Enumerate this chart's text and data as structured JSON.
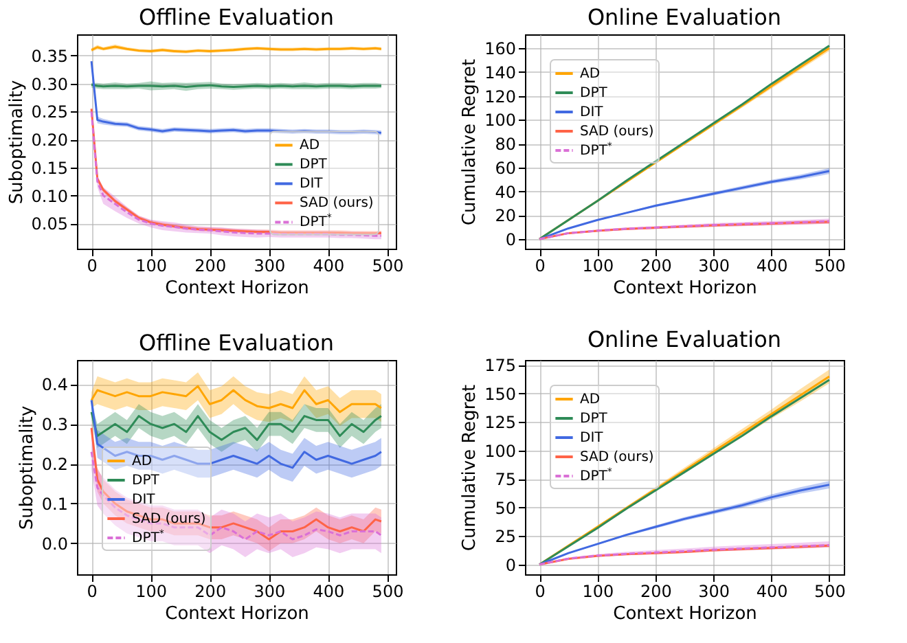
{
  "chart_data": [
    {
      "type": "line",
      "title": "Offline Evaluation",
      "xlabel": "Context Horizon",
      "ylabel": "Suboptimality",
      "xlim": [
        -24.5,
        514.5
      ],
      "xticks": [
        0,
        100,
        200,
        300,
        400,
        500
      ],
      "ylim": [
        0.005,
        0.388
      ],
      "yticks": [
        0.05,
        {
          "value": 0.1,
          "label": "0.10"
        },
        0.15,
        {
          "value": 0.2,
          "label": "0.20"
        },
        0.25,
        {
          "value": 0.3,
          "label": "0.30"
        },
        0.35
      ],
      "grid": true,
      "legend": "right",
      "x": [
        0,
        10,
        20,
        40,
        60,
        80,
        100,
        120,
        140,
        160,
        180,
        200,
        220,
        240,
        260,
        280,
        300,
        320,
        340,
        360,
        380,
        400,
        420,
        440,
        460,
        480,
        490
      ],
      "series": [
        {
          "name": "AD",
          "color": "#ffa500",
          "values": [
            0.36,
            0.365,
            0.362,
            0.366,
            0.362,
            0.359,
            0.358,
            0.36,
            0.358,
            0.357,
            0.359,
            0.358,
            0.359,
            0.36,
            0.362,
            0.363,
            0.362,
            0.361,
            0.361,
            0.362,
            0.361,
            0.362,
            0.362,
            0.363,
            0.362,
            0.363,
            0.362
          ],
          "lower": [
            0.357,
            0.361,
            0.359,
            0.362,
            0.359,
            0.356,
            0.355,
            0.357,
            0.355,
            0.354,
            0.356,
            0.355,
            0.356,
            0.357,
            0.359,
            0.36,
            0.359,
            0.358,
            0.358,
            0.359,
            0.358,
            0.359,
            0.359,
            0.36,
            0.359,
            0.36,
            0.359
          ],
          "upper": [
            0.363,
            0.369,
            0.365,
            0.37,
            0.365,
            0.362,
            0.361,
            0.363,
            0.361,
            0.36,
            0.362,
            0.361,
            0.362,
            0.363,
            0.365,
            0.366,
            0.365,
            0.364,
            0.364,
            0.365,
            0.364,
            0.365,
            0.365,
            0.366,
            0.365,
            0.366,
            0.365
          ]
        },
        {
          "name": "DPT",
          "color": "#2e8b57",
          "values": [
            0.298,
            0.296,
            0.295,
            0.296,
            0.295,
            0.296,
            0.296,
            0.295,
            0.296,
            0.294,
            0.296,
            0.297,
            0.295,
            0.294,
            0.295,
            0.296,
            0.295,
            0.296,
            0.295,
            0.296,
            0.295,
            0.296,
            0.296,
            0.295,
            0.296,
            0.296,
            0.296
          ],
          "lower": [
            0.293,
            0.291,
            0.29,
            0.29,
            0.29,
            0.291,
            0.288,
            0.289,
            0.29,
            0.287,
            0.29,
            0.291,
            0.29,
            0.289,
            0.29,
            0.291,
            0.29,
            0.291,
            0.29,
            0.29,
            0.29,
            0.291,
            0.291,
            0.29,
            0.291,
            0.291,
            0.292
          ],
          "upper": [
            0.301,
            0.301,
            0.3,
            0.302,
            0.3,
            0.301,
            0.304,
            0.301,
            0.302,
            0.301,
            0.302,
            0.303,
            0.3,
            0.299,
            0.3,
            0.301,
            0.3,
            0.301,
            0.3,
            0.302,
            0.3,
            0.301,
            0.301,
            0.3,
            0.301,
            0.301,
            0.3
          ]
        },
        {
          "name": "DIT",
          "color": "#4169e1",
          "values": [
            0.34,
            0.235,
            0.232,
            0.228,
            0.227,
            0.22,
            0.218,
            0.215,
            0.218,
            0.217,
            0.216,
            0.215,
            0.216,
            0.217,
            0.215,
            0.216,
            0.216,
            0.215,
            0.214,
            0.215,
            0.214,
            0.214,
            0.213,
            0.213,
            0.214,
            0.213,
            0.212
          ],
          "lower": [
            0.338,
            0.229,
            0.227,
            0.224,
            0.223,
            0.216,
            0.214,
            0.211,
            0.214,
            0.213,
            0.212,
            0.211,
            0.212,
            0.213,
            0.211,
            0.212,
            0.212,
            0.211,
            0.21,
            0.211,
            0.21,
            0.21,
            0.209,
            0.209,
            0.21,
            0.209,
            0.208
          ],
          "upper": [
            0.342,
            0.241,
            0.237,
            0.232,
            0.231,
            0.224,
            0.222,
            0.219,
            0.222,
            0.221,
            0.22,
            0.219,
            0.22,
            0.221,
            0.219,
            0.22,
            0.22,
            0.219,
            0.218,
            0.219,
            0.218,
            0.218,
            0.217,
            0.217,
            0.218,
            0.217,
            0.216
          ]
        },
        {
          "name": "SAD (ours)",
          "color": "#ff6347",
          "values": [
            0.255,
            0.13,
            0.11,
            0.09,
            0.075,
            0.06,
            0.052,
            0.048,
            0.045,
            0.042,
            0.04,
            0.039,
            0.038,
            0.037,
            0.036,
            0.035,
            0.035,
            0.034,
            0.034,
            0.034,
            0.034,
            0.034,
            0.034,
            0.033,
            0.033,
            0.033,
            0.033
          ],
          "lower": [
            0.252,
            0.125,
            0.106,
            0.086,
            0.072,
            0.057,
            0.049,
            0.045,
            0.042,
            0.039,
            0.037,
            0.036,
            0.035,
            0.034,
            0.033,
            0.032,
            0.032,
            0.031,
            0.031,
            0.031,
            0.031,
            0.031,
            0.031,
            0.03,
            0.03,
            0.03,
            0.03
          ],
          "upper": [
            0.259,
            0.135,
            0.114,
            0.094,
            0.079,
            0.064,
            0.056,
            0.052,
            0.049,
            0.046,
            0.044,
            0.043,
            0.042,
            0.041,
            0.04,
            0.039,
            0.039,
            0.038,
            0.038,
            0.038,
            0.038,
            0.038,
            0.038,
            0.037,
            0.037,
            0.037,
            0.037
          ]
        },
        {
          "name": "DPT$^{*}$",
          "color": "#da70d6",
          "line_style": "dashed",
          "values": [
            0.25,
            0.125,
            0.1,
            0.085,
            0.07,
            0.057,
            0.05,
            0.046,
            0.044,
            0.041,
            0.039,
            0.038,
            0.036,
            0.034,
            0.033,
            0.032,
            0.032,
            0.031,
            0.031,
            0.031,
            0.031,
            0.031,
            0.03,
            0.03,
            0.029,
            0.028,
            0.028
          ],
          "lower": [
            0.245,
            0.115,
            0.085,
            0.072,
            0.06,
            0.05,
            0.043,
            0.038,
            0.036,
            0.034,
            0.033,
            0.032,
            0.029,
            0.027,
            0.026,
            0.025,
            0.026,
            0.025,
            0.025,
            0.025,
            0.025,
            0.025,
            0.024,
            0.024,
            0.023,
            0.022,
            0.022
          ],
          "upper": [
            0.255,
            0.135,
            0.115,
            0.098,
            0.08,
            0.064,
            0.057,
            0.054,
            0.052,
            0.048,
            0.045,
            0.044,
            0.043,
            0.041,
            0.04,
            0.039,
            0.038,
            0.037,
            0.037,
            0.037,
            0.037,
            0.037,
            0.036,
            0.036,
            0.035,
            0.034,
            0.034
          ]
        }
      ]
    },
    {
      "type": "line",
      "title": "Online Evaluation",
      "xlabel": "Context Horizon",
      "ylabel": "Cumulative Regret",
      "xlim": [
        -25,
        525
      ],
      "xticks": [
        0,
        100,
        200,
        300,
        400,
        500
      ],
      "ylim": [
        -8,
        171.5
      ],
      "yticks": [
        0,
        20,
        40,
        60,
        80,
        100,
        120,
        140,
        160
      ],
      "grid": true,
      "legend": "top left",
      "x": [
        0,
        50,
        100,
        150,
        200,
        250,
        300,
        350,
        400,
        450,
        500
      ],
      "series": [
        {
          "name": "AD",
          "color": "#ffa500",
          "values": [
            0,
            16,
            32,
            48,
            64,
            80,
            96,
            112,
            128,
            144,
            160
          ],
          "lower": [
            0,
            15.8,
            31.5,
            47.3,
            63,
            78.8,
            94.5,
            110.2,
            126,
            141.8,
            157.5
          ],
          "upper": [
            0,
            16.2,
            32.4,
            48.6,
            64.8,
            81,
            97.2,
            113.4,
            129.6,
            145.8,
            162
          ]
        },
        {
          "name": "DPT",
          "color": "#2e8b57",
          "values": [
            0,
            16,
            32,
            49,
            65,
            81,
            97,
            113,
            130,
            146,
            162
          ]
        },
        {
          "name": "DIT",
          "color": "#4169e1",
          "values": [
            0,
            9,
            16,
            22,
            28,
            33,
            38,
            43,
            48,
            52,
            57
          ],
          "lower": [
            0,
            8.7,
            15.5,
            21.3,
            27,
            31.8,
            36.6,
            41.4,
            46.3,
            50,
            54.5
          ],
          "upper": [
            0,
            9.3,
            16.5,
            22.7,
            29,
            34.2,
            39.4,
            44.6,
            49.7,
            54,
            59.5
          ]
        },
        {
          "name": "SAD (ours)",
          "color": "#ff6347",
          "values": [
            0,
            5,
            7,
            8.5,
            9.5,
            10.5,
            11.5,
            12.3,
            13,
            13.8,
            14.5
          ],
          "lower": [
            0,
            4.6,
            6.4,
            7.7,
            8.6,
            9.5,
            10.3,
            11,
            11.7,
            12.3,
            13
          ],
          "upper": [
            0,
            5.4,
            7.6,
            9.3,
            10.4,
            11.5,
            12.7,
            13.6,
            14.3,
            15.3,
            16
          ]
        },
        {
          "name": "DPT$^{*}$",
          "color": "#da70d6",
          "line_style": "dashed",
          "values": [
            0,
            5,
            7.1,
            8.7,
            9.7,
            10.8,
            11.8,
            12.6,
            13.3,
            14.1,
            15
          ],
          "lower": [
            0,
            4.5,
            6.3,
            7.6,
            8.5,
            9.4,
            10.2,
            10.9,
            11.5,
            12.2,
            12.8
          ],
          "upper": [
            0,
            5.5,
            7.9,
            9.8,
            10.9,
            12.2,
            13.4,
            14.3,
            15.1,
            16,
            17.2
          ]
        }
      ]
    },
    {
      "type": "line",
      "title": "Offline Evaluation",
      "xlabel": "Context Horizon",
      "ylabel": "Suboptimality",
      "xlim": [
        -24.5,
        514.5
      ],
      "xticks": [
        0,
        100,
        200,
        300,
        400,
        500
      ],
      "ylim": [
        -0.078,
        0.461
      ],
      "yticks": [
        {
          "value": 0,
          "label": "0.0"
        },
        0.1,
        0.2,
        0.3,
        0.4
      ],
      "grid": true,
      "legend": "bottom left",
      "x": [
        0,
        10,
        20,
        40,
        60,
        80,
        100,
        120,
        140,
        160,
        180,
        200,
        220,
        240,
        260,
        280,
        300,
        320,
        340,
        360,
        380,
        400,
        420,
        440,
        460,
        480,
        490
      ],
      "series": [
        {
          "name": "AD",
          "color": "#ffa500",
          "values": [
            0.36,
            0.385,
            0.38,
            0.37,
            0.38,
            0.37,
            0.37,
            0.38,
            0.375,
            0.37,
            0.395,
            0.35,
            0.36,
            0.385,
            0.36,
            0.345,
            0.34,
            0.35,
            0.34,
            0.385,
            0.35,
            0.36,
            0.33,
            0.35,
            0.35,
            0.35,
            0.34
          ],
          "lower": [
            0.34,
            0.35,
            0.345,
            0.335,
            0.345,
            0.335,
            0.335,
            0.345,
            0.34,
            0.335,
            0.36,
            0.315,
            0.325,
            0.35,
            0.325,
            0.31,
            0.305,
            0.315,
            0.305,
            0.35,
            0.315,
            0.325,
            0.295,
            0.315,
            0.315,
            0.315,
            0.305
          ],
          "upper": [
            0.38,
            0.42,
            0.415,
            0.405,
            0.415,
            0.405,
            0.405,
            0.415,
            0.41,
            0.405,
            0.43,
            0.385,
            0.395,
            0.42,
            0.395,
            0.38,
            0.375,
            0.385,
            0.375,
            0.42,
            0.385,
            0.395,
            0.365,
            0.385,
            0.385,
            0.385,
            0.375
          ]
        },
        {
          "name": "DPT",
          "color": "#2e8b57",
          "values": [
            0.33,
            0.27,
            0.28,
            0.3,
            0.28,
            0.32,
            0.3,
            0.29,
            0.3,
            0.28,
            0.32,
            0.28,
            0.26,
            0.28,
            0.29,
            0.26,
            0.3,
            0.3,
            0.28,
            0.32,
            0.31,
            0.31,
            0.27,
            0.3,
            0.28,
            0.31,
            0.32
          ],
          "lower": [
            0.31,
            0.24,
            0.25,
            0.27,
            0.25,
            0.29,
            0.27,
            0.26,
            0.27,
            0.25,
            0.29,
            0.25,
            0.23,
            0.25,
            0.26,
            0.23,
            0.27,
            0.27,
            0.25,
            0.29,
            0.28,
            0.28,
            0.24,
            0.27,
            0.25,
            0.28,
            0.29
          ],
          "upper": [
            0.35,
            0.3,
            0.31,
            0.33,
            0.31,
            0.35,
            0.33,
            0.32,
            0.33,
            0.31,
            0.35,
            0.31,
            0.29,
            0.31,
            0.32,
            0.29,
            0.33,
            0.33,
            0.31,
            0.35,
            0.34,
            0.34,
            0.3,
            0.33,
            0.31,
            0.34,
            0.35
          ]
        },
        {
          "name": "DIT",
          "color": "#4169e1",
          "values": [
            0.36,
            0.25,
            0.24,
            0.22,
            0.23,
            0.22,
            0.22,
            0.21,
            0.22,
            0.21,
            0.2,
            0.2,
            0.21,
            0.22,
            0.21,
            0.2,
            0.22,
            0.2,
            0.19,
            0.23,
            0.21,
            0.22,
            0.21,
            0.2,
            0.21,
            0.22,
            0.23
          ],
          "lower": [
            0.345,
            0.215,
            0.205,
            0.185,
            0.195,
            0.185,
            0.185,
            0.175,
            0.185,
            0.175,
            0.165,
            0.165,
            0.175,
            0.185,
            0.175,
            0.165,
            0.185,
            0.165,
            0.155,
            0.195,
            0.175,
            0.185,
            0.175,
            0.165,
            0.175,
            0.185,
            0.195
          ],
          "upper": [
            0.375,
            0.285,
            0.275,
            0.255,
            0.265,
            0.255,
            0.255,
            0.245,
            0.255,
            0.245,
            0.235,
            0.235,
            0.245,
            0.255,
            0.245,
            0.235,
            0.255,
            0.235,
            0.225,
            0.265,
            0.245,
            0.255,
            0.245,
            0.235,
            0.245,
            0.255,
            0.265
          ]
        },
        {
          "name": "SAD (ours)",
          "color": "#ff6347",
          "values": [
            0.29,
            0.16,
            0.13,
            0.1,
            0.08,
            0.07,
            0.06,
            0.06,
            0.05,
            0.05,
            0.05,
            0.04,
            0.04,
            0.05,
            0.04,
            0.03,
            0.01,
            0.03,
            0.03,
            0.04,
            0.06,
            0.04,
            0.03,
            0.04,
            0.03,
            0.06,
            0.055
          ],
          "lower": [
            0.27,
            0.13,
            0.1,
            0.07,
            0.05,
            0.04,
            0.03,
            0.03,
            0.02,
            0.02,
            0.02,
            0.01,
            0.01,
            0.02,
            0.01,
            0.0,
            -0.02,
            0.0,
            0.0,
            0.01,
            0.03,
            0.01,
            0.0,
            0.01,
            0.0,
            0.03,
            0.025
          ],
          "upper": [
            0.31,
            0.19,
            0.16,
            0.13,
            0.11,
            0.1,
            0.09,
            0.09,
            0.08,
            0.08,
            0.08,
            0.07,
            0.07,
            0.08,
            0.07,
            0.06,
            0.04,
            0.06,
            0.06,
            0.07,
            0.09,
            0.07,
            0.06,
            0.07,
            0.06,
            0.09,
            0.085
          ]
        },
        {
          "name": "DPT$^{*}$",
          "color": "#da70d6",
          "line_style": "dashed",
          "values": [
            0.23,
            0.14,
            0.12,
            0.09,
            0.07,
            0.06,
            0.05,
            0.05,
            0.04,
            0.04,
            0.04,
            0.02,
            0.04,
            0.03,
            0.01,
            0.03,
            0.02,
            0.03,
            0.01,
            0.02,
            0.035,
            0.03,
            0.02,
            0.03,
            0.03,
            0.03,
            0.02
          ],
          "lower": [
            0.185,
            0.095,
            0.075,
            0.045,
            0.025,
            0.015,
            0.005,
            0.005,
            -0.005,
            -0.005,
            -0.005,
            -0.025,
            -0.005,
            -0.015,
            -0.035,
            -0.015,
            -0.025,
            -0.015,
            -0.035,
            -0.025,
            -0.01,
            -0.015,
            -0.025,
            -0.015,
            -0.015,
            -0.015,
            -0.025
          ],
          "upper": [
            0.275,
            0.185,
            0.165,
            0.135,
            0.115,
            0.105,
            0.095,
            0.095,
            0.085,
            0.085,
            0.085,
            0.065,
            0.085,
            0.075,
            0.055,
            0.075,
            0.065,
            0.075,
            0.055,
            0.065,
            0.08,
            0.075,
            0.065,
            0.075,
            0.075,
            0.075,
            0.065
          ]
        }
      ]
    },
    {
      "type": "line",
      "title": "Online Evaluation",
      "xlabel": "Context Horizon",
      "ylabel": "Cumulative Regret",
      "xlim": [
        -25,
        525
      ],
      "xticks": [
        0,
        100,
        200,
        300,
        400,
        500
      ],
      "ylim": [
        -8.6,
        179.5
      ],
      "yticks": [
        0,
        25,
        50,
        75,
        100,
        125,
        150,
        175
      ],
      "grid": true,
      "legend": "top left",
      "x": [
        0,
        50,
        100,
        150,
        200,
        250,
        300,
        350,
        400,
        450,
        500
      ],
      "series": [
        {
          "name": "AD",
          "color": "#ffa500",
          "values": [
            0,
            16.5,
            33,
            49.5,
            66,
            82.5,
            99,
            115.5,
            132,
            148.5,
            165
          ],
          "lower": [
            0,
            16,
            32,
            48,
            64,
            80,
            96,
            112,
            128,
            143,
            159
          ],
          "upper": [
            0,
            17,
            34,
            51,
            68,
            85,
            102,
            119,
            136,
            154,
            171
          ]
        },
        {
          "name": "DPT",
          "color": "#2e8b57",
          "values": [
            0,
            16,
            32,
            49,
            65,
            81,
            97,
            113,
            130,
            146,
            162
          ]
        },
        {
          "name": "DIT",
          "color": "#4169e1",
          "values": [
            0,
            10,
            18,
            26,
            33,
            40,
            46,
            52,
            59,
            65,
            70
          ],
          "lower": [
            0,
            9.6,
            17.3,
            25,
            31.7,
            38.4,
            44.2,
            49.9,
            56.5,
            62.2,
            66.8
          ],
          "upper": [
            0,
            10.4,
            18.7,
            27,
            34.3,
            41.6,
            47.8,
            54.1,
            61.5,
            67.8,
            73.2
          ]
        },
        {
          "name": "SAD (ours)",
          "color": "#ff6347",
          "values": [
            0,
            5,
            7.5,
            9,
            10,
            11,
            12.5,
            13.5,
            14.5,
            15.5,
            16.5
          ],
          "lower": [
            0,
            4.6,
            6.9,
            8.2,
            9.1,
            10,
            11.4,
            12.3,
            13.2,
            14.1,
            15
          ],
          "upper": [
            0,
            5.4,
            8.1,
            9.8,
            10.9,
            12,
            13.6,
            14.7,
            15.8,
            16.9,
            18
          ]
        },
        {
          "name": "DPT$^{*}$",
          "color": "#da70d6",
          "line_style": "dashed",
          "values": [
            0,
            5.2,
            7.8,
            9.4,
            10.5,
            11.6,
            13,
            14,
            15,
            16,
            17
          ],
          "lower": [
            0,
            4.7,
            7,
            8.4,
            9.3,
            10.3,
            11.5,
            12.4,
            13.3,
            14.2,
            15
          ],
          "upper": [
            0,
            6,
            9.2,
            11.2,
            12.6,
            14,
            15.6,
            16.8,
            18,
            19.2,
            20.3
          ]
        }
      ]
    }
  ]
}
